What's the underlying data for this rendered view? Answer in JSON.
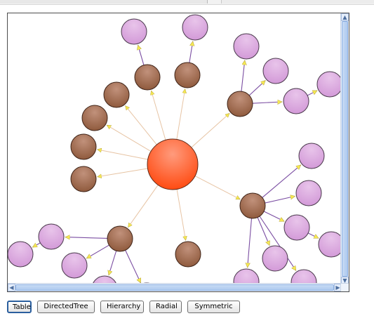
{
  "toolbar": {
    "table_label": "Table",
    "directed_tree_label": "DirectedTree",
    "hierarchy_label": "Hierarchy",
    "radial_label": "Radial",
    "symmetric_label": "Symmetric"
  },
  "graph": {
    "background_color": "#ffffff",
    "center_node_color": "#ff5a1f",
    "intermediate_node_color": "#9a5f3f",
    "leaf_node_color": "#d9a8dd",
    "center_edge_color": "#e7c4a4",
    "child_edge_color": "#7b4ea2",
    "arrow_color": "#f7e95a"
  },
  "scrollbars": {
    "up_icon": "chevron-up-icon",
    "down_icon": "chevron-down-icon",
    "left_icon": "chevron-left-icon",
    "right_icon": "chevron-right-icon"
  }
}
